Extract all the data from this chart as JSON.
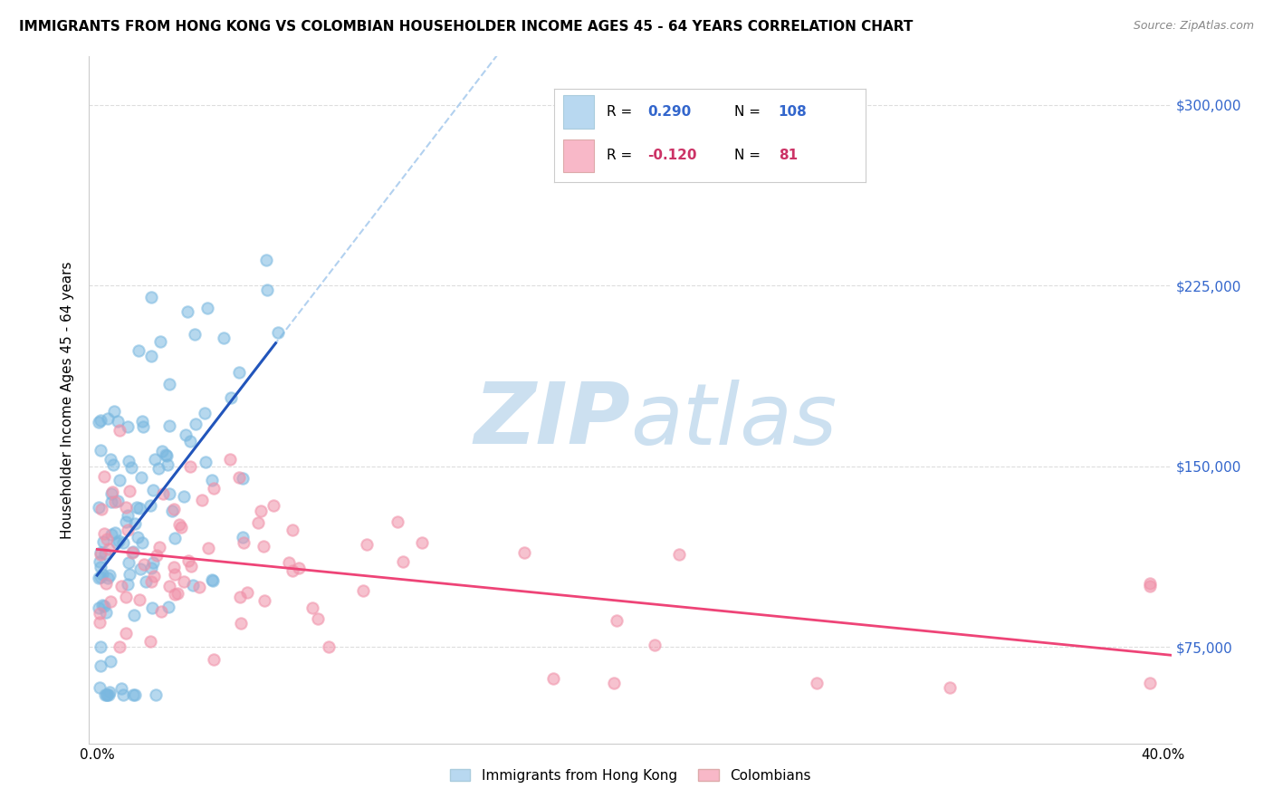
{
  "title": "IMMIGRANTS FROM HONG KONG VS COLOMBIAN HOUSEHOLDER INCOME AGES 45 - 64 YEARS CORRELATION CHART",
  "source": "Source: ZipAtlas.com",
  "ylabel": "Householder Income Ages 45 - 64 years",
  "ytick_labels": [
    "$75,000",
    "$150,000",
    "$225,000",
    "$300,000"
  ],
  "ytick_values": [
    75000,
    150000,
    225000,
    300000
  ],
  "ymin": 35000,
  "ymax": 320000,
  "xmin": -0.003,
  "xmax": 0.403,
  "hk_scatter_color": "#7ab8e0",
  "col_scatter_color": "#f090a8",
  "trend_hk_color": "#2255bb",
  "trend_col_color": "#ee4477",
  "dash_color": "#aaccee",
  "watermark_color": "#cce0f0",
  "background_color": "#ffffff",
  "grid_color": "#dddddd",
  "legend_label_hk": "Immigrants from Hong Kong",
  "legend_label_col": "Colombians",
  "hk_patch_color": "#b8d8f0",
  "col_patch_color": "#f8b8c8",
  "legend_r_hk": "0.290",
  "legend_n_hk": "108",
  "legend_r_col": "-0.120",
  "legend_n_col": "81",
  "legend_text_hk_color": "#3366cc",
  "legend_text_col_color": "#cc3366",
  "right_tick_color": "#3366cc"
}
